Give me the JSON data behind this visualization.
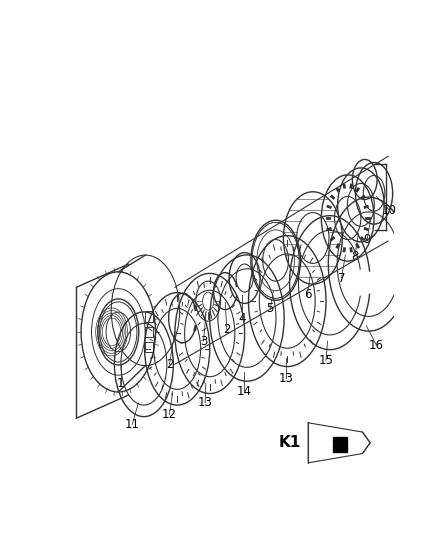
{
  "background_color": "#ffffff",
  "line_color": "#333333",
  "label_color": "#000000",
  "figure_width": 4.38,
  "figure_height": 5.33,
  "dpi": 100,
  "k1_label": "K1"
}
